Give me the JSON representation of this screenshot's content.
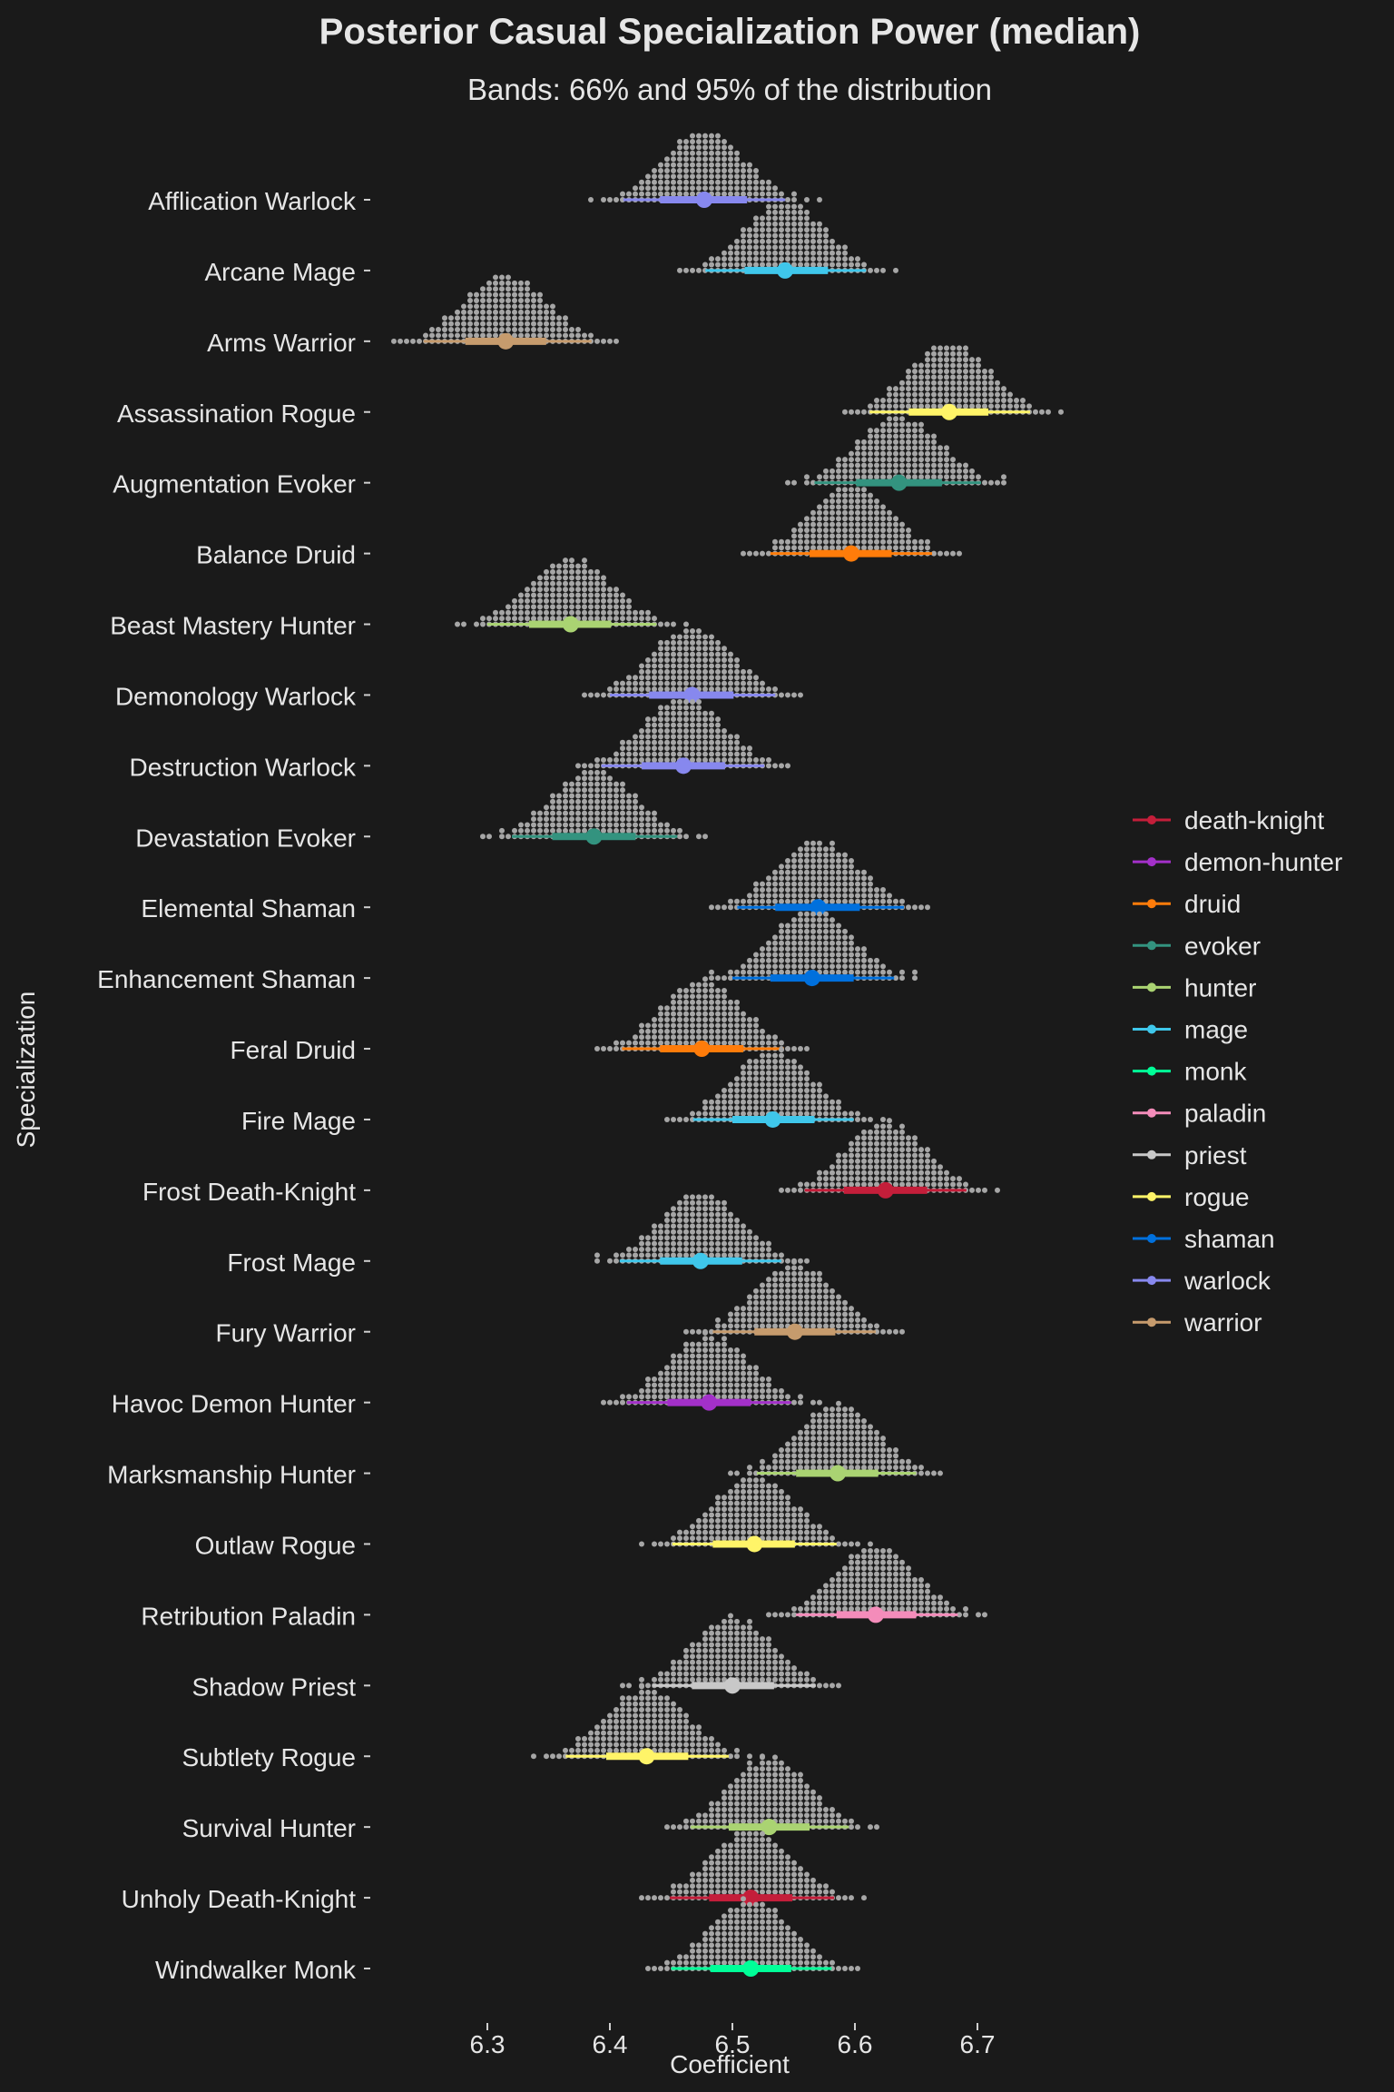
{
  "chart_data": {
    "type": "dotplot",
    "title": "Posterior Casual Specialization Power (median)",
    "subtitle": "Bands: 66% and 95% of the distribution",
    "xlabel": "Coefficient",
    "ylabel": "Specialization",
    "xlim": [
      6.225,
      6.8
    ],
    "x_ticks": [
      "6.3",
      "6.4",
      "6.5",
      "6.6",
      "6.7"
    ],
    "legend": {
      "position": "right",
      "entries": [
        {
          "name": "death-knight",
          "color": "#c41e3a"
        },
        {
          "name": "demon-hunter",
          "color": "#a330c9"
        },
        {
          "name": "druid",
          "color": "#ff7c0a"
        },
        {
          "name": "evoker",
          "color": "#33937f"
        },
        {
          "name": "hunter",
          "color": "#aad372"
        },
        {
          "name": "mage",
          "color": "#3fc7eb"
        },
        {
          "name": "monk",
          "color": "#00ff98"
        },
        {
          "name": "paladin",
          "color": "#f48cba"
        },
        {
          "name": "priest",
          "color": "#c8c8c8"
        },
        {
          "name": "rogue",
          "color": "#fff468"
        },
        {
          "name": "shaman",
          "color": "#0070dd"
        },
        {
          "name": "warlock",
          "color": "#8788ee"
        },
        {
          "name": "warrior",
          "color": "#c69b6d"
        }
      ]
    },
    "series": [
      {
        "name": "Afflication Warlock",
        "class": "warlock",
        "median": 6.477,
        "ci66": [
          6.441,
          6.512
        ],
        "ci95": [
          6.411,
          6.543
        ],
        "range": [
          6.387,
          6.572
        ]
      },
      {
        "name": "Arcane Mage",
        "class": "mage",
        "median": 6.543,
        "ci66": [
          6.51,
          6.578
        ],
        "ci95": [
          6.478,
          6.609
        ],
        "range": [
          6.455,
          6.632
        ]
      },
      {
        "name": "Arms Warrior",
        "class": "warrior",
        "median": 6.315,
        "ci66": [
          6.282,
          6.348
        ],
        "ci95": [
          6.248,
          6.385
        ],
        "range": [
          6.226,
          6.405
        ]
      },
      {
        "name": "Assassination Rogue",
        "class": "rogue",
        "median": 6.677,
        "ci66": [
          6.644,
          6.709
        ],
        "ci95": [
          6.612,
          6.743
        ],
        "range": [
          6.592,
          6.766
        ]
      },
      {
        "name": "Augmentation Evoker",
        "class": "evoker",
        "median": 6.636,
        "ci66": [
          6.601,
          6.671
        ],
        "ci95": [
          6.567,
          6.703
        ],
        "range": [
          6.546,
          6.723
        ]
      },
      {
        "name": "Balance Druid",
        "class": "druid",
        "median": 6.597,
        "ci66": [
          6.563,
          6.63
        ],
        "ci95": [
          6.531,
          6.663
        ],
        "range": [
          6.508,
          6.686
        ]
      },
      {
        "name": "Beast Mastery Hunter",
        "class": "hunter",
        "median": 6.368,
        "ci66": [
          6.334,
          6.401
        ],
        "ci95": [
          6.3,
          6.438
        ],
        "range": [
          6.278,
          6.46
        ]
      },
      {
        "name": "Demonology Warlock",
        "class": "warlock",
        "median": 6.467,
        "ci66": [
          6.432,
          6.501
        ],
        "ci95": [
          6.4,
          6.535
        ],
        "range": [
          6.378,
          6.555
        ]
      },
      {
        "name": "Destruction Warlock",
        "class": "warlock",
        "median": 6.46,
        "ci66": [
          6.426,
          6.494
        ],
        "ci95": [
          6.393,
          6.526
        ],
        "range": [
          6.372,
          6.546
        ]
      },
      {
        "name": "Devastation Evoker",
        "class": "evoker",
        "median": 6.387,
        "ci66": [
          6.353,
          6.421
        ],
        "ci95": [
          6.32,
          6.455
        ],
        "range": [
          6.298,
          6.476
        ]
      },
      {
        "name": "Elemental Shaman",
        "class": "shaman",
        "median": 6.57,
        "ci66": [
          6.535,
          6.604
        ],
        "ci95": [
          6.504,
          6.64
        ],
        "range": [
          6.484,
          6.661
        ]
      },
      {
        "name": "Enhancement Shaman",
        "class": "shaman",
        "median": 6.565,
        "ci66": [
          6.531,
          6.599
        ],
        "ci95": [
          6.5,
          6.632
        ],
        "range": [
          6.481,
          6.65
        ]
      },
      {
        "name": "Feral Druid",
        "class": "druid",
        "median": 6.475,
        "ci66": [
          6.441,
          6.509
        ],
        "ci95": [
          6.41,
          6.542
        ],
        "range": [
          6.39,
          6.56
        ]
      },
      {
        "name": "Fire Mage",
        "class": "mage",
        "median": 6.533,
        "ci66": [
          6.5,
          6.567
        ],
        "ci95": [
          6.468,
          6.599
        ],
        "range": [
          6.447,
          6.621
        ]
      },
      {
        "name": "Frost Death-Knight",
        "class": "death-knight",
        "median": 6.625,
        "ci66": [
          6.591,
          6.659
        ],
        "ci95": [
          6.559,
          6.691
        ],
        "range": [
          6.542,
          6.714
        ]
      },
      {
        "name": "Frost Mage",
        "class": "mage",
        "median": 6.474,
        "ci66": [
          6.441,
          6.508
        ],
        "ci95": [
          6.408,
          6.54
        ],
        "range": [
          6.39,
          6.562
        ]
      },
      {
        "name": "Fury Warrior",
        "class": "warrior",
        "median": 6.551,
        "ci66": [
          6.518,
          6.584
        ],
        "ci95": [
          6.484,
          6.617
        ],
        "range": [
          6.462,
          6.641
        ]
      },
      {
        "name": "Havoc Demon Hunter",
        "class": "demon-hunter",
        "median": 6.481,
        "ci66": [
          6.447,
          6.515
        ],
        "ci95": [
          6.414,
          6.548
        ],
        "range": [
          6.393,
          6.569
        ]
      },
      {
        "name": "Marksmanship Hunter",
        "class": "hunter",
        "median": 6.586,
        "ci66": [
          6.552,
          6.619
        ],
        "ci95": [
          6.52,
          6.65
        ],
        "range": [
          6.499,
          6.669
        ]
      },
      {
        "name": "Outlaw Rogue",
        "class": "rogue",
        "median": 6.518,
        "ci66": [
          6.484,
          6.551
        ],
        "ci95": [
          6.451,
          6.585
        ],
        "range": [
          6.427,
          6.612
        ]
      },
      {
        "name": "Retribution Paladin",
        "class": "paladin",
        "median": 6.617,
        "ci66": [
          6.585,
          6.65
        ],
        "ci95": [
          6.552,
          6.684
        ],
        "range": [
          6.531,
          6.707
        ]
      },
      {
        "name": "Shadow Priest",
        "class": "priest",
        "median": 6.5,
        "ci66": [
          6.467,
          6.534
        ],
        "ci95": [
          6.435,
          6.568
        ],
        "range": [
          6.411,
          6.588
        ]
      },
      {
        "name": "Subtlety Rogue",
        "class": "rogue",
        "median": 6.43,
        "ci66": [
          6.397,
          6.464
        ],
        "ci95": [
          6.364,
          6.497
        ],
        "range": [
          6.34,
          6.527
        ]
      },
      {
        "name": "Survival Hunter",
        "class": "hunter",
        "median": 6.53,
        "ci66": [
          6.497,
          6.563
        ],
        "ci95": [
          6.466,
          6.595
        ],
        "range": [
          6.445,
          6.617
        ]
      },
      {
        "name": "Unholy Death-Knight",
        "class": "death-knight",
        "median": 6.515,
        "ci66": [
          6.481,
          6.549
        ],
        "ci95": [
          6.449,
          6.583
        ],
        "range": [
          6.428,
          6.605
        ]
      },
      {
        "name": "Windwalker Monk",
        "class": "monk",
        "median": 6.515,
        "ci66": [
          6.482,
          6.548
        ],
        "ci95": [
          6.45,
          6.581
        ],
        "range": [
          6.43,
          6.603
        ]
      }
    ]
  }
}
